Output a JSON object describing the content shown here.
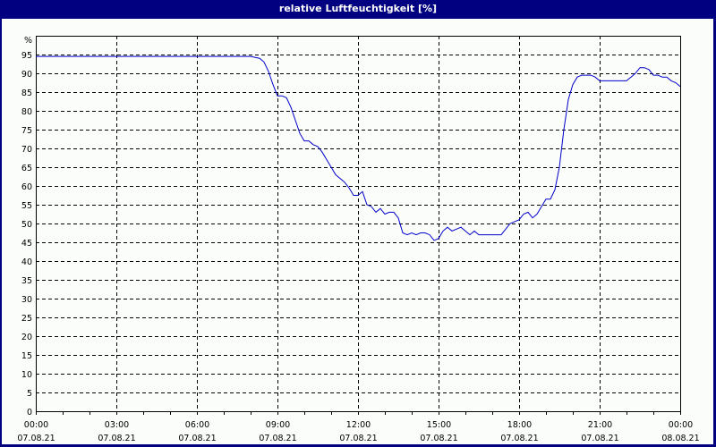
{
  "window": {
    "title": "relative Luftfeuchtigkeit [%]"
  },
  "colors": {
    "frame": "#000080",
    "background": "#fbfdfa",
    "line": "#0000cc",
    "grid": "#000000"
  },
  "chart_data": {
    "type": "line",
    "title": "relative Luftfeuchtigkeit [%]",
    "xlabel": "",
    "ylabel": "%",
    "ylim": [
      0,
      100
    ],
    "y_ticks": [
      "0",
      "5",
      "10",
      "15",
      "20",
      "25",
      "30",
      "35",
      "40",
      "45",
      "50",
      "55",
      "60",
      "65",
      "70",
      "75",
      "80",
      "85",
      "90",
      "95"
    ],
    "y_unit_label": "%",
    "x_ticks": [
      {
        "time": "00:00",
        "date": "07.08.21"
      },
      {
        "time": "03:00",
        "date": "07.08.21"
      },
      {
        "time": "06:00",
        "date": "07.08.21"
      },
      {
        "time": "09:00",
        "date": "07.08.21"
      },
      {
        "time": "12:00",
        "date": "07.08.21"
      },
      {
        "time": "15:00",
        "date": "07.08.21"
      },
      {
        "time": "18:00",
        "date": "07.08.21"
      },
      {
        "time": "21:00",
        "date": "07.08.21"
      },
      {
        "time": "00:00",
        "date": "08.08.21"
      }
    ],
    "grid": true,
    "legend": "none",
    "series": [
      {
        "name": "relative Luftfeuchtigkeit",
        "x_minutes": [
          0,
          480,
          500,
          510,
          520,
          530,
          540,
          550,
          560,
          570,
          580,
          590,
          600,
          610,
          620,
          630,
          640,
          650,
          660,
          670,
          680,
          690,
          700,
          710,
          720,
          730,
          740,
          750,
          760,
          770,
          780,
          790,
          800,
          810,
          820,
          830,
          840,
          850,
          860,
          870,
          880,
          890,
          900,
          910,
          920,
          930,
          940,
          950,
          960,
          970,
          980,
          990,
          1000,
          1020,
          1040,
          1050,
          1060,
          1070,
          1080,
          1090,
          1100,
          1110,
          1120,
          1130,
          1140,
          1150,
          1160,
          1170,
          1180,
          1190,
          1200,
          1210,
          1220,
          1230,
          1240,
          1250,
          1260,
          1270,
          1280,
          1300,
          1320,
          1330,
          1340,
          1350,
          1360,
          1370,
          1380,
          1390,
          1400,
          1410,
          1420,
          1430,
          1440
        ],
        "values": [
          94.5,
          94.5,
          94,
          93,
          90.5,
          87,
          84,
          84,
          83.5,
          81,
          77.5,
          74,
          72,
          72,
          71,
          70.5,
          69,
          67,
          65,
          63,
          62,
          61,
          59.5,
          57.5,
          57.5,
          58.5,
          55,
          54.5,
          53,
          54,
          52.5,
          53,
          53,
          51.5,
          47.5,
          47,
          47.5,
          47,
          47.5,
          47.5,
          47,
          45.5,
          46,
          48,
          49,
          48,
          48.5,
          49,
          48,
          47,
          48,
          47,
          47,
          47,
          47,
          48.5,
          50,
          50.5,
          51,
          52.5,
          53,
          51.5,
          52.5,
          54.5,
          56.5,
          56.5,
          59,
          65,
          75,
          83,
          87,
          89,
          89.5,
          89.5,
          89.5,
          89,
          88,
          88,
          88,
          88,
          88,
          89,
          90,
          91.5,
          91.5,
          91,
          89.5,
          89.5,
          89,
          89,
          88,
          87.5,
          86.5
        ]
      }
    ]
  }
}
